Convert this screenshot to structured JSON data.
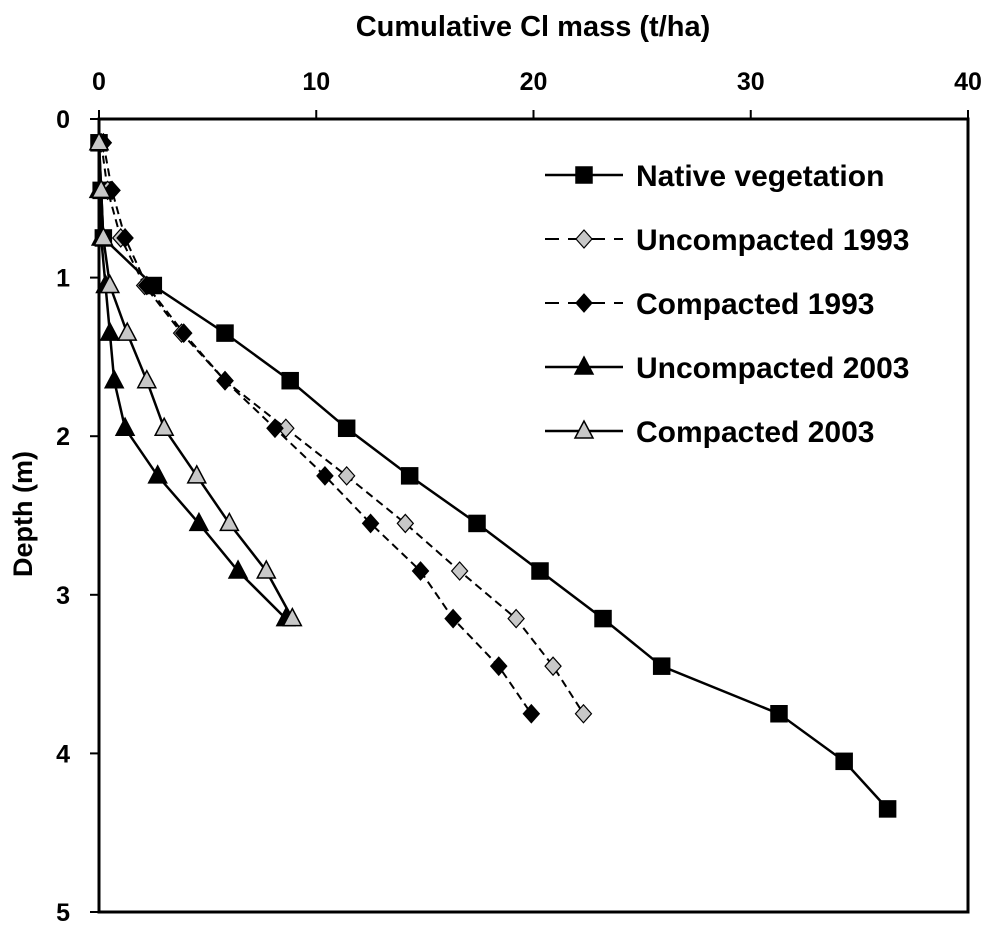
{
  "chart_data": {
    "type": "line",
    "title": "",
    "xlabel": "Cumulative Cl mass (t/ha)",
    "ylabel": "Depth (m)",
    "xlim": [
      0,
      40
    ],
    "ylim": [
      0,
      5
    ],
    "x_axis_position": "top",
    "y_axis_inverted": true,
    "grid": false,
    "legend_position": "top-right",
    "xticks": [
      "0",
      "10",
      "20",
      "30",
      "40"
    ],
    "yticks": [
      "0",
      "1",
      "2",
      "3",
      "4",
      "5"
    ],
    "series": [
      {
        "name": "Native vegetation",
        "marker": "square",
        "fill": "#000000",
        "line": "solid",
        "points": [
          [
            0.0,
            0.15
          ],
          [
            0.1,
            0.45
          ],
          [
            0.2,
            0.75
          ],
          [
            2.5,
            1.05
          ],
          [
            5.8,
            1.35
          ],
          [
            8.8,
            1.65
          ],
          [
            11.4,
            1.95
          ],
          [
            14.3,
            2.25
          ],
          [
            17.4,
            2.55
          ],
          [
            20.3,
            2.85
          ],
          [
            23.2,
            3.15
          ],
          [
            25.9,
            3.45
          ],
          [
            31.3,
            3.75
          ],
          [
            34.3,
            4.05
          ],
          [
            36.3,
            4.35
          ]
        ]
      },
      {
        "name": "Uncompacted 1993",
        "marker": "diamond",
        "fill": "#c8c8c8",
        "line": "dashed",
        "points": [
          [
            0.1,
            0.15
          ],
          [
            0.4,
            0.45
          ],
          [
            1.0,
            0.75
          ],
          [
            2.1,
            1.05
          ],
          [
            3.8,
            1.35
          ],
          [
            5.8,
            1.65
          ],
          [
            8.6,
            1.95
          ],
          [
            11.4,
            2.25
          ],
          [
            14.1,
            2.55
          ],
          [
            16.6,
            2.85
          ],
          [
            19.2,
            3.15
          ],
          [
            20.9,
            3.45
          ],
          [
            22.3,
            3.75
          ]
        ]
      },
      {
        "name": "Compacted 1993",
        "marker": "diamond",
        "fill": "#000000",
        "line": "dashed",
        "points": [
          [
            0.2,
            0.15
          ],
          [
            0.6,
            0.45
          ],
          [
            1.2,
            0.75
          ],
          [
            2.2,
            1.05
          ],
          [
            3.9,
            1.35
          ],
          [
            5.8,
            1.65
          ],
          [
            8.1,
            1.95
          ],
          [
            10.4,
            2.25
          ],
          [
            12.5,
            2.55
          ],
          [
            14.8,
            2.85
          ],
          [
            16.3,
            3.15
          ],
          [
            18.4,
            3.45
          ],
          [
            19.9,
            3.75
          ]
        ]
      },
      {
        "name": "Uncompacted 2003",
        "marker": "triangle",
        "fill": "#000000",
        "line": "solid",
        "points": [
          [
            0.0,
            0.15
          ],
          [
            0.0,
            0.45
          ],
          [
            0.1,
            0.75
          ],
          [
            0.3,
            1.05
          ],
          [
            0.5,
            1.35
          ],
          [
            0.7,
            1.65
          ],
          [
            1.2,
            1.95
          ],
          [
            2.7,
            2.25
          ],
          [
            4.6,
            2.55
          ],
          [
            6.4,
            2.85
          ],
          [
            8.6,
            3.15
          ]
        ]
      },
      {
        "name": "Compacted 2003",
        "marker": "triangle",
        "fill": "#c8c8c8",
        "line": "solid",
        "points": [
          [
            0.0,
            0.15
          ],
          [
            0.1,
            0.45
          ],
          [
            0.2,
            0.75
          ],
          [
            0.5,
            1.05
          ],
          [
            1.3,
            1.35
          ],
          [
            2.2,
            1.65
          ],
          [
            3.0,
            1.95
          ],
          [
            4.5,
            2.25
          ],
          [
            6.0,
            2.55
          ],
          [
            7.7,
            2.85
          ],
          [
            8.9,
            3.15
          ]
        ]
      }
    ]
  }
}
